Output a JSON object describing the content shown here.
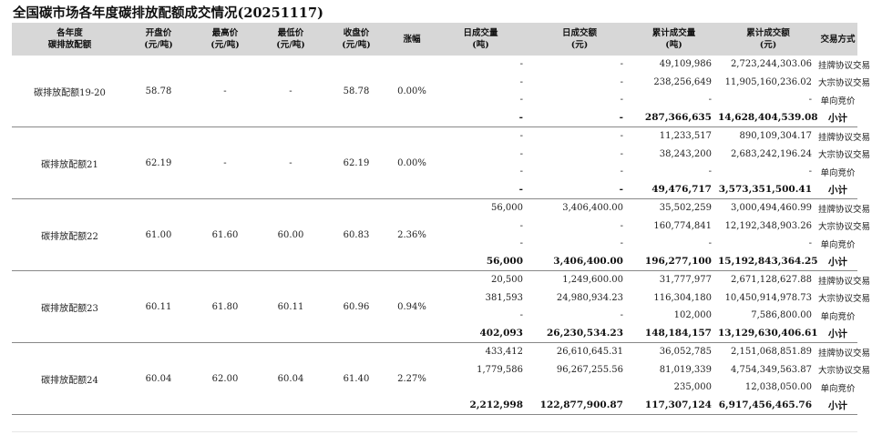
{
  "title": "全国碳市场各年度碳排放配额成交情况(20251117)",
  "headers": {
    "year": [
      "各年度",
      "碳排放配额"
    ],
    "open": [
      "开盘价",
      "(元/吨)"
    ],
    "high": [
      "最高价",
      "(元/吨)"
    ],
    "low": [
      "最低价",
      "(元/吨)"
    ],
    "close": [
      "收盘价",
      "(元/吨)"
    ],
    "change": [
      "涨幅"
    ],
    "day_volume": [
      "日成交量",
      "(吨)"
    ],
    "day_amount": [
      "日成交额",
      "(元)"
    ],
    "cum_volume": [
      "累计成交量",
      "(吨)"
    ],
    "cum_amount": [
      "累计成交额",
      "(元)"
    ],
    "mode": [
      "交易方式"
    ]
  },
  "groups": [
    {
      "name": "碳排放配额19-20",
      "open": "58.78",
      "high": "-",
      "low": "-",
      "close": "58.78",
      "change": "0.00%",
      "rows": [
        {
          "day_volume": "-",
          "day_amount": "-",
          "cum_volume": "49,109,986",
          "cum_amount": "2,723,244,303.06",
          "mode": "挂牌协议交易"
        },
        {
          "day_volume": "-",
          "day_amount": "-",
          "cum_volume": "238,256,649",
          "cum_amount": "11,905,160,236.02",
          "mode": "大宗协议交易"
        },
        {
          "day_volume": "-",
          "day_amount": "-",
          "cum_volume": "-",
          "cum_amount": "-",
          "mode": "单向竞价"
        },
        {
          "day_volume": "-",
          "day_amount": "-",
          "cum_volume": "287,366,635",
          "cum_amount": "14,628,404,539.08",
          "mode": "小计"
        }
      ]
    },
    {
      "name": "碳排放配额21",
      "open": "62.19",
      "high": "-",
      "low": "-",
      "close": "62.19",
      "change": "0.00%",
      "rows": [
        {
          "day_volume": "-",
          "day_amount": "-",
          "cum_volume": "11,233,517",
          "cum_amount": "890,109,304.17",
          "mode": "挂牌协议交易"
        },
        {
          "day_volume": "-",
          "day_amount": "-",
          "cum_volume": "38,243,200",
          "cum_amount": "2,683,242,196.24",
          "mode": "大宗协议交易"
        },
        {
          "day_volume": "-",
          "day_amount": "-",
          "cum_volume": "-",
          "cum_amount": "-",
          "mode": "单向竞价"
        },
        {
          "day_volume": "-",
          "day_amount": "-",
          "cum_volume": "49,476,717",
          "cum_amount": "3,573,351,500.41",
          "mode": "小计"
        }
      ]
    },
    {
      "name": "碳排放配额22",
      "open": "61.00",
      "high": "61.60",
      "low": "60.00",
      "close": "60.83",
      "change": "2.36%",
      "rows": [
        {
          "day_volume": "56,000",
          "day_amount": "3,406,400.00",
          "cum_volume": "35,502,259",
          "cum_amount": "3,000,494,460.99",
          "mode": "挂牌协议交易"
        },
        {
          "day_volume": "-",
          "day_amount": "-",
          "cum_volume": "160,774,841",
          "cum_amount": "12,192,348,903.26",
          "mode": "大宗协议交易"
        },
        {
          "day_volume": "-",
          "day_amount": "-",
          "cum_volume": "-",
          "cum_amount": "-",
          "mode": "单向竞价"
        },
        {
          "day_volume": "56,000",
          "day_amount": "3,406,400.00",
          "cum_volume": "196,277,100",
          "cum_amount": "15,192,843,364.25",
          "mode": "小计"
        }
      ]
    },
    {
      "name": "碳排放配额23",
      "open": "60.11",
      "high": "61.80",
      "low": "60.11",
      "close": "60.96",
      "change": "0.94%",
      "rows": [
        {
          "day_volume": "20,500",
          "day_amount": "1,249,600.00",
          "cum_volume": "31,777,977",
          "cum_amount": "2,671,128,627.88",
          "mode": "挂牌协议交易"
        },
        {
          "day_volume": "381,593",
          "day_amount": "24,980,934.23",
          "cum_volume": "116,304,180",
          "cum_amount": "10,450,914,978.73",
          "mode": "大宗协议交易"
        },
        {
          "day_volume": "-",
          "day_amount": "-",
          "cum_volume": "102,000",
          "cum_amount": "7,586,800.00",
          "mode": "单向竞价"
        },
        {
          "day_volume": "402,093",
          "day_amount": "26,230,534.23",
          "cum_volume": "148,184,157",
          "cum_amount": "13,129,630,406.61",
          "mode": "小计"
        }
      ]
    },
    {
      "name": "碳排放配额24",
      "open": "60.04",
      "high": "62.00",
      "low": "60.04",
      "close": "61.40",
      "change": "2.27%",
      "rows": [
        {
          "day_volume": "433,412",
          "day_amount": "26,610,645.31",
          "cum_volume": "36,052,785",
          "cum_amount": "2,151,068,851.89",
          "mode": "挂牌协议交易"
        },
        {
          "day_volume": "1,779,586",
          "day_amount": "96,267,255.56",
          "cum_volume": "81,019,339",
          "cum_amount": "4,754,349,563.87",
          "mode": "大宗协议交易"
        },
        {
          "day_volume": "",
          "day_amount": "",
          "cum_volume": "235,000",
          "cum_amount": "12,038,050.00",
          "mode": "单向竞价"
        },
        {
          "day_volume": "2,212,998",
          "day_amount": "122,877,900.87",
          "cum_volume": "117,307,124",
          "cum_amount": "6,917,456,465.76",
          "mode": "小计"
        }
      ]
    }
  ]
}
